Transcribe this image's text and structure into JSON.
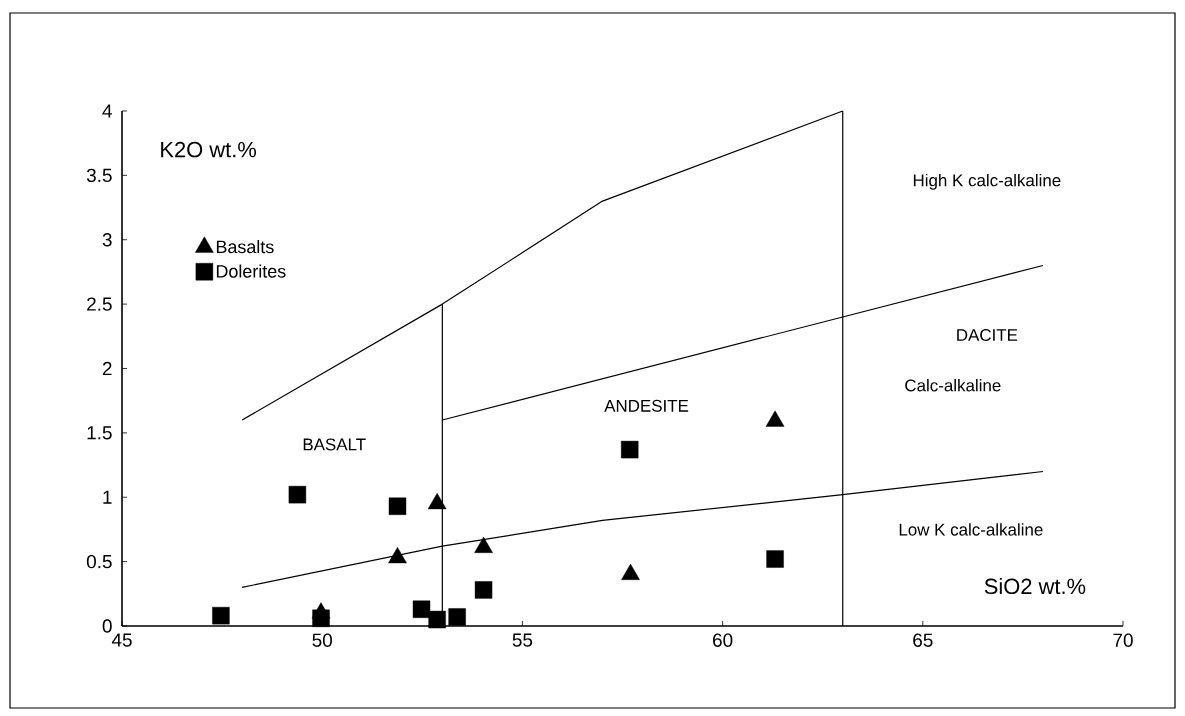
{
  "chart_data": {
    "type": "scatter",
    "xlabel": "SiO2  wt.%",
    "ylabel": "K2O wt.%",
    "xlim": [
      45,
      70
    ],
    "xticks": [
      45,
      50,
      55,
      60,
      65,
      70
    ],
    "ylim": [
      0,
      4
    ],
    "yticks": [
      0,
      0.5,
      1,
      1.5,
      2,
      2.5,
      3,
      3.5,
      4
    ],
    "grid": false,
    "legend": "top left",
    "series": [
      {
        "name": "Basalts",
        "color": "#000000",
        "marker": "triangle",
        "x": [
          52.87,
          51.88,
          54.03,
          49.97,
          57.7,
          61.31
        ],
        "values": [
          0.95,
          0.53,
          0.61,
          0.1,
          0.4,
          1.59
        ]
      },
      {
        "name": "Dolerites",
        "color": "#000000",
        "marker": "square",
        "x": [
          47.47,
          49.38,
          51.88,
          49.97,
          52.48,
          52.87,
          53.37,
          54.03,
          57.68,
          61.31
        ],
        "values": [
          0.08,
          1.02,
          0.93,
          0.06,
          0.13,
          0.05,
          0.07,
          0.28,
          1.37,
          0.52
        ]
      },
      {
        "type": "line",
        "color": "#000000",
        "marker": "none",
        "x": [
          48,
          53,
          57,
          63
        ],
        "values": [
          1.6,
          2.5,
          3.3,
          4.0
        ]
      },
      {
        "type": "line",
        "color": "#000000",
        "marker": "none",
        "x": [
          53,
          68
        ],
        "values": [
          1.6,
          2.8
        ]
      },
      {
        "type": "line",
        "color": "#000000",
        "marker": "none",
        "x": [
          48,
          53,
          57,
          63,
          68
        ],
        "values": [
          0.3,
          0.62,
          0.82,
          1.02,
          1.2
        ]
      },
      {
        "type": "line",
        "color": "#000000",
        "marker": "none",
        "x": [
          53,
          53
        ],
        "values": [
          2.5,
          0
        ]
      },
      {
        "type": "line",
        "color": "#000000",
        "marker": "none",
        "x": [
          63,
          63
        ],
        "values": [
          4.0,
          0
        ]
      }
    ],
    "annotations": [
      "BASALT",
      "ANDESITE",
      "High K calc-alkaline",
      "DACITE",
      "Calc-alkaline",
      "Low K calc-alkaline"
    ]
  }
}
